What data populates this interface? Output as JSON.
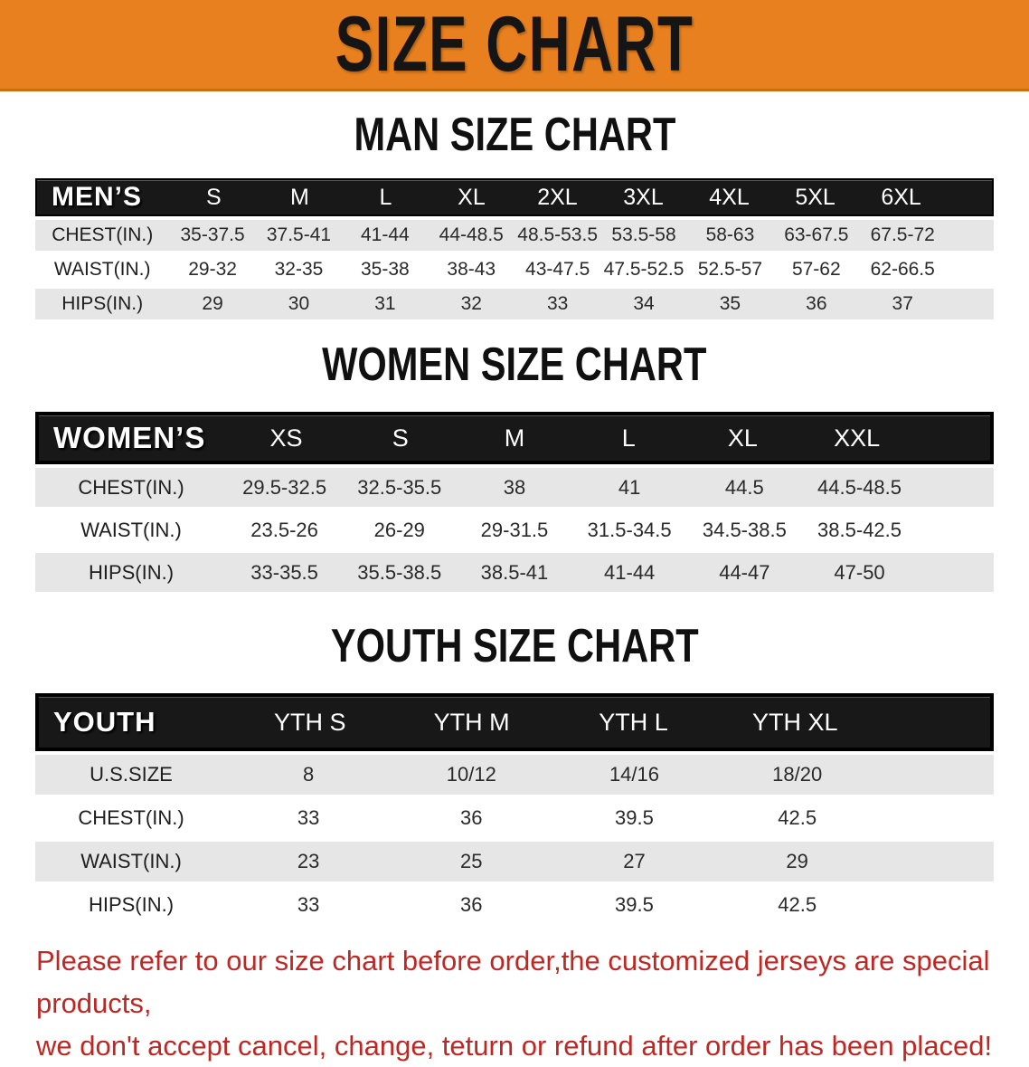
{
  "banner": {
    "title": "SIZE CHART"
  },
  "colors": {
    "banner-bg": "#e8801f",
    "banner-border": "#cf6d12",
    "header-bg": "#181818",
    "row-alt": "#e6e6e6",
    "note-red": "#bc2823"
  },
  "sections": [
    {
      "heading": "MAN SIZE CHART",
      "label": "MEN’S",
      "columns": [
        "S",
        "M",
        "L",
        "XL",
        "2XL",
        "3XL",
        "4XL",
        "5XL",
        "6XL"
      ],
      "rows": [
        {
          "label": "CHEST(IN.)",
          "values": [
            "35-37.5",
            "37.5-41",
            "41-44",
            "44-48.5",
            "48.5-53.5",
            "53.5-58",
            "58-63",
            "63-67.5",
            "67.5-72"
          ]
        },
        {
          "label": "WAIST(IN.)",
          "values": [
            "29-32",
            "32-35",
            "35-38",
            "38-43",
            "43-47.5",
            "47.5-52.5",
            "52.5-57",
            "57-62",
            "62-66.5"
          ]
        },
        {
          "label": "HIPS(IN.)",
          "values": [
            "29",
            "30",
            "31",
            "32",
            "33",
            "34",
            "35",
            "36",
            "37"
          ]
        }
      ]
    },
    {
      "heading": "WOMEN SIZE CHART",
      "label": "WOMEN’S",
      "columns": [
        "XS",
        "S",
        "M",
        "L",
        "XL",
        "XXL"
      ],
      "rows": [
        {
          "label": "CHEST(IN.)",
          "values": [
            "29.5-32.5",
            "32.5-35.5",
            "38",
            "41",
            "44.5",
            "44.5-48.5"
          ]
        },
        {
          "label": "WAIST(IN.)",
          "values": [
            "23.5-26",
            "26-29",
            "29-31.5",
            "31.5-34.5",
            "34.5-38.5",
            "38.5-42.5"
          ]
        },
        {
          "label": "HIPS(IN.)",
          "values": [
            "33-35.5",
            "35.5-38.5",
            "38.5-41",
            "41-44",
            "44-47",
            "47-50"
          ]
        }
      ]
    },
    {
      "heading": "YOUTH SIZE CHART",
      "label": "YOUTH",
      "columns": [
        "YTH S",
        "YTH M",
        "YTH L",
        "YTH XL"
      ],
      "rows": [
        {
          "label": "U.S.SIZE",
          "values": [
            "8",
            "10/12",
            "14/16",
            "18/20"
          ]
        },
        {
          "label": "CHEST(IN.)",
          "values": [
            "33",
            "36",
            "39.5",
            "42.5"
          ]
        },
        {
          "label": "WAIST(IN.)",
          "values": [
            "23",
            "25",
            "27",
            "29"
          ]
        },
        {
          "label": "HIPS(IN.)",
          "values": [
            "33",
            "36",
            "39.5",
            "42.5"
          ]
        }
      ]
    }
  ],
  "footer": {
    "line1": "Please refer to our size chart before order,the customized jerseys are special products,",
    "line2": "we don't accept cancel, change, teturn or refund after order has been placed!"
  }
}
